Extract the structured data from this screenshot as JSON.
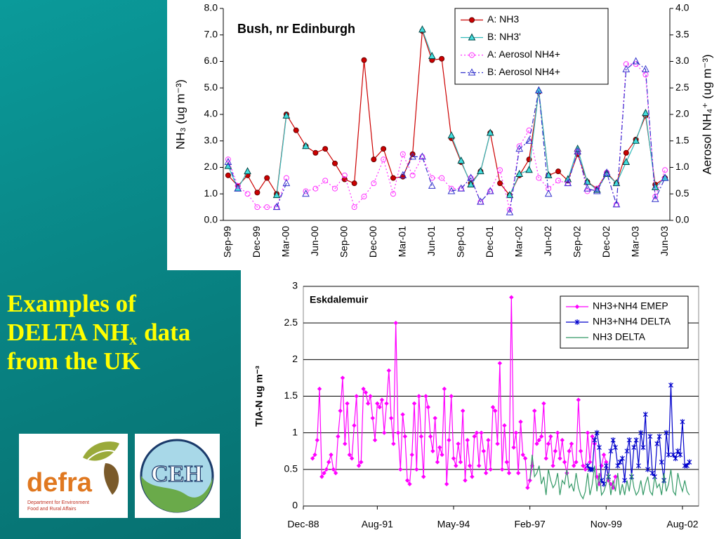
{
  "heading": {
    "line1": "Examples of",
    "line2": "DELTA NH",
    "line2_sub": "x",
    "line2_rest": "data",
    "line3": "from the UK"
  },
  "logos": {
    "defra": {
      "name": "defra",
      "line1": "Department for Environment",
      "line2": "Food and Rural Affairs"
    },
    "ceh": {
      "name": "CEH"
    }
  },
  "chart_data": [
    {
      "type": "line",
      "title": "Bush, nr Edinburgh",
      "ylabel": "NH₃ (ug m⁻³)",
      "y2label": "Aerosol NH₄⁺ (ug m⁻³)",
      "categories": [
        "Sep-99",
        null,
        null,
        "Dec-99",
        null,
        null,
        "Mar-00",
        null,
        null,
        "Jun-00",
        null,
        null,
        "Sep-00",
        null,
        null,
        "Dec-00",
        null,
        null,
        "Mar-01",
        null,
        null,
        "Jun-01",
        null,
        null,
        "Sep-01",
        null,
        null,
        "Dec-01",
        null,
        null,
        "Mar-02",
        null,
        null,
        "Jun-02",
        null,
        null,
        "Sep-02",
        null,
        null,
        "Dec-02",
        null,
        null,
        "Mar-03",
        null,
        null,
        "Jun-03"
      ],
      "ylim": [
        0,
        8
      ],
      "yticks": [
        {
          "value": 0,
          "label": "0.0"
        },
        {
          "value": 1,
          "label": "1.0"
        },
        {
          "value": 2,
          "label": "2.0"
        },
        {
          "value": 3,
          "label": "3.0"
        },
        {
          "value": 4,
          "label": "4.0"
        },
        {
          "value": 5,
          "label": "5.0"
        },
        {
          "value": 6,
          "label": "6.0"
        },
        {
          "value": 7,
          "label": "7.0"
        },
        {
          "value": 8,
          "label": "8.0"
        }
      ],
      "y2lim": [
        0,
        4
      ],
      "y2ticks": [
        {
          "value": 0,
          "label": "0.0"
        },
        0.5,
        {
          "value": 1,
          "label": "1.0"
        },
        1.5,
        {
          "value": 2,
          "label": "2.0"
        },
        2.5,
        {
          "value": 3,
          "label": "3.0"
        },
        3.5,
        {
          "value": 4,
          "label": "4.0"
        }
      ],
      "grid": false,
      "legend": "upper right",
      "series": [
        {
          "name": "A: NH3",
          "color": "#cc0000",
          "marker": "circle",
          "marker_fill": "#cc0000",
          "marker_stroke": "#660000",
          "dash": "solid",
          "values": [
            1.7,
            1.3,
            1.7,
            1.05,
            1.6,
            1.0,
            4.0,
            3.4,
            2.8,
            2.55,
            2.7,
            2.15,
            1.55,
            1.4,
            6.05,
            2.3,
            2.7,
            1.6,
            1.65,
            2.5,
            7.15,
            6.05,
            6.1,
            3.1,
            2.2,
            1.4,
            1.85,
            3.3,
            1.4,
            0.95,
            1.7,
            2.3,
            4.85,
            1.7,
            1.85,
            1.5,
            2.5,
            1.45,
            1.2,
            1.8,
            1.4,
            2.55,
            3.05,
            3.95,
            1.35,
            1.6
          ]
        },
        {
          "name": "B: NH3'",
          "color": "#33bbbb",
          "marker": "triangle",
          "marker_fill": "#44dddd",
          "marker_stroke": "#004444",
          "dash": "solid",
          "values": [
            2.05,
            1.2,
            1.85,
            null,
            null,
            0.95,
            3.95,
            null,
            2.8,
            null,
            null,
            null,
            null,
            null,
            null,
            null,
            null,
            null,
            null,
            null,
            7.2,
            6.2,
            null,
            3.2,
            2.25,
            1.35,
            1.85,
            3.3,
            null,
            0.95,
            1.75,
            1.9,
            4.9,
            1.7,
            null,
            1.55,
            2.7,
            1.45,
            1.15,
            1.75,
            1.4,
            2.2,
            3.0,
            4.05,
            1.25,
            1.6
          ]
        },
        {
          "name": "A: Aerosol NH4+",
          "color": "#ff33ff",
          "marker": "circle",
          "dash": "dotted",
          "axis": "y2",
          "values": [
            1.15,
            0.65,
            0.5,
            0.25,
            0.25,
            0.25,
            0.8,
            null,
            0.55,
            0.6,
            0.75,
            0.6,
            0.85,
            0.25,
            0.45,
            0.7,
            1.15,
            0.5,
            1.25,
            0.85,
            1.2,
            0.8,
            0.8,
            0.6,
            0.6,
            0.8,
            0.35,
            0.55,
            0.95,
            0.2,
            1.4,
            1.7,
            0.8,
            0.6,
            0.75,
            0.7,
            1.3,
            0.55,
            0.6,
            0.9,
            0.3,
            2.95,
            2.95,
            2.75,
            0.45,
            0.95
          ]
        },
        {
          "name": "B: Aerosol NH4+",
          "color": "#3333cc",
          "marker": "triangle",
          "dash": "dashdot",
          "axis": "y2",
          "values": [
            1.1,
            0.6,
            null,
            null,
            null,
            0.25,
            0.7,
            null,
            0.5,
            null,
            null,
            null,
            null,
            null,
            null,
            null,
            null,
            null,
            0.85,
            1.2,
            1.2,
            0.65,
            null,
            0.55,
            0.6,
            0.8,
            0.35,
            0.55,
            null,
            0.15,
            1.35,
            1.5,
            2.45,
            0.5,
            null,
            0.7,
            1.3,
            0.6,
            0.55,
            0.9,
            0.3,
            2.85,
            3.0,
            2.85,
            0.4,
            0.8
          ]
        }
      ]
    },
    {
      "type": "line",
      "title": "Eskdalemuir",
      "ylabel": "TIA-N ug m⁻³",
      "xlim": [
        "Dec-88",
        "Mar-03"
      ],
      "xticks": [
        "Dec-88",
        "Aug-91",
        "May-94",
        "Feb-97",
        "Nov-99",
        "Aug-02"
      ],
      "ylim": [
        0,
        3
      ],
      "yticks": [
        0,
        0.5,
        1,
        1.5,
        2,
        2.5,
        3
      ],
      "grid": true,
      "legend": "upper right",
      "x": [
        "Apr-89",
        "May-89",
        "Jun-89",
        "Jul-89",
        "Aug-89",
        "Sep-89",
        "Oct-89",
        "Nov-89",
        "Dec-89",
        "Jan-90",
        "Feb-90",
        "Mar-90",
        "Apr-90",
        "May-90",
        "Jun-90",
        "Jul-90",
        "Aug-90",
        "Sep-90",
        "Oct-90",
        "Nov-90",
        "Dec-90",
        "Jan-91",
        "Feb-91",
        "Mar-91",
        "Apr-91",
        "May-91",
        "Jun-91",
        "Jul-91",
        "Aug-91",
        "Sep-91",
        "Oct-91",
        "Nov-91",
        "Dec-91",
        "Jan-92",
        "Feb-92",
        "Mar-92",
        "Apr-92",
        "May-92",
        "Jun-92",
        "Jul-92",
        "Aug-92",
        "Sep-92",
        "Oct-92",
        "Nov-92",
        "Dec-92",
        "Jan-93",
        "Feb-93",
        "Mar-93",
        "Apr-93",
        "May-93",
        "Jun-93",
        "Jul-93",
        "Aug-93",
        "Sep-93",
        "Oct-93",
        "Nov-93",
        "Dec-93",
        "Jan-94",
        "Feb-94",
        "Mar-94",
        "Apr-94",
        "May-94",
        "Jun-94",
        "Jul-94",
        "Aug-94",
        "Sep-94",
        "Oct-94",
        "Nov-94",
        "Dec-94",
        "Jan-95",
        "Feb-95",
        "Mar-95",
        "Apr-95",
        "May-95",
        "Jun-95",
        "Jul-95",
        "Aug-95",
        "Sep-95",
        "Oct-95",
        "Nov-95",
        "Dec-95",
        "Jan-96",
        "Feb-96",
        "Mar-96",
        "Apr-96",
        "May-96",
        "Jun-96",
        "Jul-96",
        "Aug-96",
        "Sep-96",
        "Oct-96",
        "Nov-96",
        "Dec-96",
        "Jan-97",
        "Feb-97",
        "Mar-97",
        "Apr-97",
        "May-97",
        "Jun-97",
        "Jul-97",
        "Aug-97",
        "Sep-97",
        "Oct-97",
        "Nov-97",
        "Dec-97",
        "Jan-98",
        "Feb-98",
        "Mar-98",
        "Apr-98",
        "May-98",
        "Jun-98",
        "Jul-98",
        "Aug-98",
        "Sep-98",
        "Oct-98",
        "Nov-98",
        "Dec-98",
        "Jan-99",
        "Feb-99",
        "Mar-99",
        "Apr-99",
        "May-99",
        "Jun-99",
        "Jul-99",
        "Aug-99",
        "Sep-99",
        "Oct-99",
        "Nov-99",
        "Dec-99",
        "Jan-00",
        "Feb-00",
        "Mar-00",
        "Apr-00",
        "May-00",
        "Jun-00",
        "Jul-00",
        "Aug-00",
        "Sep-00",
        "Oct-00",
        "Nov-00",
        "Dec-00",
        "Jan-01",
        "Feb-01",
        "Mar-01",
        "Apr-01",
        "May-01",
        "Jun-01",
        "Jul-01",
        "Aug-01",
        "Sep-01",
        "Oct-01",
        "Nov-01",
        "Dec-01",
        "Jan-02",
        "Feb-02",
        "Mar-02",
        "Apr-02",
        "May-02",
        "Jun-02",
        "Jul-02",
        "Aug-02",
        "Sep-02",
        "Oct-02",
        "Nov-02"
      ],
      "series": [
        {
          "name": "NH3+NH4 EMEP",
          "color": "#ff00ff",
          "marker": "diamond",
          "marker_fill": "#ff00ff",
          "values": [
            0.65,
            0.7,
            0.9,
            1.6,
            0.4,
            0.45,
            0.5,
            0.6,
            0.7,
            0.5,
            0.45,
            0.95,
            1.3,
            1.75,
            0.85,
            1.4,
            0.7,
            0.65,
            1.1,
            1.5,
            0.55,
            0.6,
            1.6,
            1.55,
            1.4,
            1.5,
            1.2,
            0.9,
            1.4,
            1.35,
            1.45,
            1.0,
            1.4,
            1.85,
            1.2,
            0.85,
            2.5,
            1.0,
            0.5,
            1.25,
            0.95,
            0.35,
            0.3,
            0.7,
            1.4,
            0.5,
            1.5,
            0.95,
            0.4,
            1.5,
            1.35,
            0.95,
            0.75,
            1.2,
            0.6,
            0.8,
            0.7,
            1.6,
            0.3,
            0.9,
            1.5,
            0.65,
            0.55,
            0.85,
            0.6,
            1.3,
            0.35,
            0.9,
            0.55,
            0.4,
            0.95,
            1.0,
            0.55,
            1.0,
            0.75,
            0.45,
            0.9,
            0.5,
            1.35,
            1.3,
            0.85,
            1.95,
            0.5,
            1.1,
            0.6,
            0.45,
            2.85,
            0.8,
            1.0,
            0.45,
            1.15,
            0.7,
            0.65,
            0.25,
            0.35,
            0.55,
            1.3,
            0.85,
            0.9,
            0.95,
            1.4,
            0.65,
            0.85,
            0.95,
            0.55,
            0.75,
            1.0,
            0.65,
            0.9,
            0.6,
            0.45,
            0.75,
            0.85,
            0.55,
            0.6,
            1.45,
            0.75,
            0.55,
            0.5,
            1.0,
            0.6,
            0.95,
            0.85,
            0.4,
            0.3,
            0.55,
            0.7,
            0.6,
            0.35,
            0.3,
            0.25,
            0.4,
            null,
            null,
            null,
            null,
            null,
            null,
            null,
            null,
            null,
            null,
            null,
            null,
            null,
            null,
            null,
            null,
            null,
            null,
            null,
            null,
            null,
            null,
            null,
            null,
            null,
            null,
            null,
            null,
            null,
            null,
            null,
            null
          ]
        },
        {
          "name": "NH3+NH4 DELTA",
          "color": "#0000cc",
          "marker": "star",
          "values": [
            null,
            null,
            null,
            null,
            null,
            null,
            null,
            null,
            null,
            null,
            null,
            null,
            null,
            null,
            null,
            null,
            null,
            null,
            null,
            null,
            null,
            null,
            null,
            null,
            null,
            null,
            null,
            null,
            null,
            null,
            null,
            null,
            null,
            null,
            null,
            null,
            null,
            null,
            null,
            null,
            null,
            null,
            null,
            null,
            null,
            null,
            null,
            null,
            null,
            null,
            null,
            null,
            null,
            null,
            null,
            null,
            null,
            null,
            null,
            null,
            null,
            null,
            null,
            null,
            null,
            null,
            null,
            null,
            null,
            null,
            null,
            null,
            null,
            null,
            null,
            null,
            null,
            null,
            null,
            null,
            null,
            null,
            null,
            null,
            null,
            null,
            null,
            null,
            null,
            null,
            null,
            null,
            null,
            null,
            null,
            null,
            null,
            null,
            null,
            null,
            null,
            null,
            null,
            null,
            null,
            null,
            null,
            null,
            null,
            null,
            null,
            null,
            null,
            null,
            null,
            null,
            null,
            null,
            null,
            0.55,
            0.5,
            0.5,
            0.9,
            1.0,
            0.8,
            0.35,
            0.3,
            0.55,
            0.4,
            0.75,
            0.9,
            0.8,
            0.55,
            0.6,
            0.65,
            0.35,
            0.75,
            0.9,
            0.4,
            0.8,
            0.9,
            0.55,
            1.0,
            0.8,
            1.25,
            0.5,
            0.95,
            0.45,
            0.4,
            0.85,
            0.95,
            0.6,
            0.35,
            1.0,
            0.7,
            1.65,
            0.7,
            0.65,
            0.75,
            0.7,
            1.15,
            0.55,
            0.55,
            0.6
          ]
        },
        {
          "name": "NH3 DELTA",
          "color": "#339966",
          "marker": "none",
          "values": [
            null,
            null,
            null,
            null,
            null,
            null,
            null,
            null,
            null,
            null,
            null,
            null,
            null,
            null,
            null,
            null,
            null,
            null,
            null,
            null,
            null,
            null,
            null,
            null,
            null,
            null,
            null,
            null,
            null,
            null,
            null,
            null,
            null,
            null,
            null,
            null,
            null,
            null,
            null,
            null,
            null,
            null,
            null,
            null,
            null,
            null,
            null,
            null,
            null,
            null,
            null,
            null,
            null,
            null,
            null,
            null,
            null,
            null,
            null,
            null,
            null,
            null,
            null,
            null,
            null,
            null,
            null,
            null,
            null,
            null,
            null,
            null,
            null,
            null,
            null,
            null,
            null,
            null,
            null,
            null,
            null,
            null,
            null,
            null,
            null,
            null,
            null,
            null,
            null,
            null,
            null,
            null,
            null,
            null,
            0.35,
            0.7,
            0.4,
            0.45,
            0.55,
            0.3,
            0.4,
            0.15,
            0.5,
            0.35,
            0.25,
            0.3,
            0.45,
            0.15,
            0.35,
            0.3,
            0.5,
            0.25,
            0.3,
            0.2,
            0.45,
            0.25,
            0.15,
            0.1,
            0.2,
            0.45,
            0.15,
            0.3,
            0.55,
            0.2,
            0.45,
            0.15,
            0.2,
            0.3,
            0.45,
            0.15,
            0.35,
            0.2,
            0.45,
            0.15,
            0.3,
            0.15,
            0.35,
            0.2,
            0.45,
            0.25,
            0.15,
            0.2,
            0.35,
            0.15,
            0.3,
            0.4,
            0.2,
            0.15,
            0.4,
            0.25,
            0.3,
            0.15,
            0.45,
            0.2,
            0.3,
            0.5,
            0.2,
            0.15,
            0.45,
            0.3,
            0.2,
            0.35,
            0.2,
            0.15
          ]
        }
      ]
    }
  ]
}
